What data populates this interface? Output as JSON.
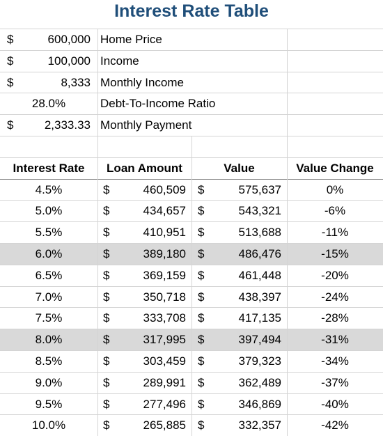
{
  "title": "Interest Rate Table",
  "inputs": [
    {
      "currency": "$",
      "value": "600,000",
      "label": "Home Price"
    },
    {
      "currency": "$",
      "value": "100,000",
      "label": "Income"
    },
    {
      "currency": "$",
      "value": "8,333",
      "label": "Monthly Income"
    },
    {
      "value": "28.0%",
      "label": "Debt-To-Income Ratio"
    },
    {
      "currency": "$",
      "value": "2,333.33",
      "label": "Monthly Payment"
    }
  ],
  "table": {
    "headers": [
      "Interest Rate",
      "Loan Amount",
      "Value",
      "Value Change"
    ],
    "highlight_rows": [
      3,
      7
    ],
    "rows": [
      [
        "4.5%",
        "$",
        "460,509",
        "$",
        "575,637",
        "0%"
      ],
      [
        "5.0%",
        "$",
        "434,657",
        "$",
        "543,321",
        "-6%"
      ],
      [
        "5.5%",
        "$",
        "410,951",
        "$",
        "513,688",
        "-11%"
      ],
      [
        "6.0%",
        "$",
        "389,180",
        "$",
        "486,476",
        "-15%"
      ],
      [
        "6.5%",
        "$",
        "369,159",
        "$",
        "461,448",
        "-20%"
      ],
      [
        "7.0%",
        "$",
        "350,718",
        "$",
        "438,397",
        "-24%"
      ],
      [
        "7.5%",
        "$",
        "333,708",
        "$",
        "417,135",
        "-28%"
      ],
      [
        "8.0%",
        "$",
        "317,995",
        "$",
        "397,494",
        "-31%"
      ],
      [
        "8.5%",
        "$",
        "303,459",
        "$",
        "379,323",
        "-34%"
      ],
      [
        "9.0%",
        "$",
        "289,991",
        "$",
        "362,489",
        "-37%"
      ],
      [
        "9.5%",
        "$",
        "277,496",
        "$",
        "346,869",
        "-40%"
      ],
      [
        "10.0%",
        "$",
        "265,885",
        "$",
        "332,357",
        "-42%"
      ]
    ]
  }
}
